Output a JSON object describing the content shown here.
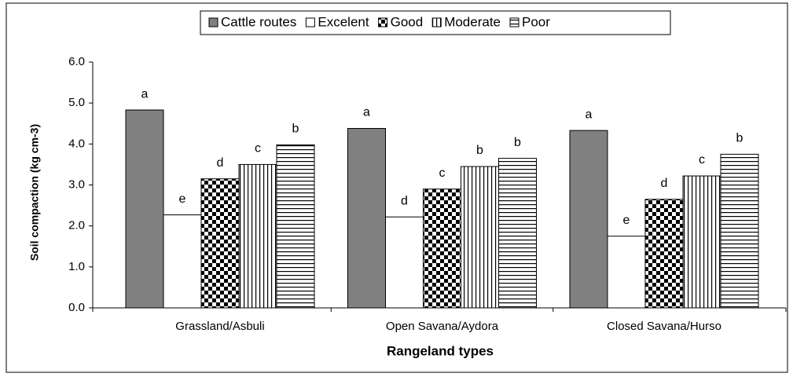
{
  "chart_data": {
    "type": "bar",
    "categories": [
      "Grassland/Asbuli",
      "Open Savana/Aydora",
      "Closed Savana/Hurso"
    ],
    "series": [
      {
        "name": "Cattle routes",
        "color": "#808080",
        "pattern": "solid",
        "values": [
          4.83,
          4.38,
          4.33
        ],
        "annotations": [
          "a",
          "a",
          "a"
        ]
      },
      {
        "name": "Excelent",
        "color": "#ffffff",
        "pattern": "solid",
        "values": [
          2.27,
          2.22,
          1.75
        ],
        "annotations": [
          "e",
          "d",
          "e"
        ]
      },
      {
        "name": "Good",
        "color": "#ffffff",
        "pattern": "checker",
        "values": [
          3.15,
          2.9,
          2.65
        ],
        "annotations": [
          "d",
          "c",
          "d"
        ]
      },
      {
        "name": "Moderate",
        "color": "#ffffff",
        "pattern": "vertical",
        "values": [
          3.5,
          3.45,
          3.22
        ],
        "annotations": [
          "c",
          "b",
          "c"
        ]
      },
      {
        "name": "Poor",
        "color": "#ffffff",
        "pattern": "horizontal",
        "values": [
          3.98,
          3.65,
          3.75
        ],
        "annotations": [
          "b",
          "b",
          "b"
        ]
      }
    ],
    "ylabel": "Soil compaction (kg cm-3)",
    "xlabel": "Rangeland types",
    "ylim": [
      0,
      6
    ],
    "yticks": [
      {
        "value": 0,
        "label": "0.0"
      },
      {
        "value": 1,
        "label": "1.0"
      },
      {
        "value": 2,
        "label": "2.0"
      },
      {
        "value": 3,
        "label": "3.0"
      },
      {
        "value": 4,
        "label": "4.0"
      },
      {
        "value": 5,
        "label": "5.0"
      },
      {
        "value": 6,
        "label": "6.0"
      }
    ],
    "legend": "top",
    "grid": false
  }
}
